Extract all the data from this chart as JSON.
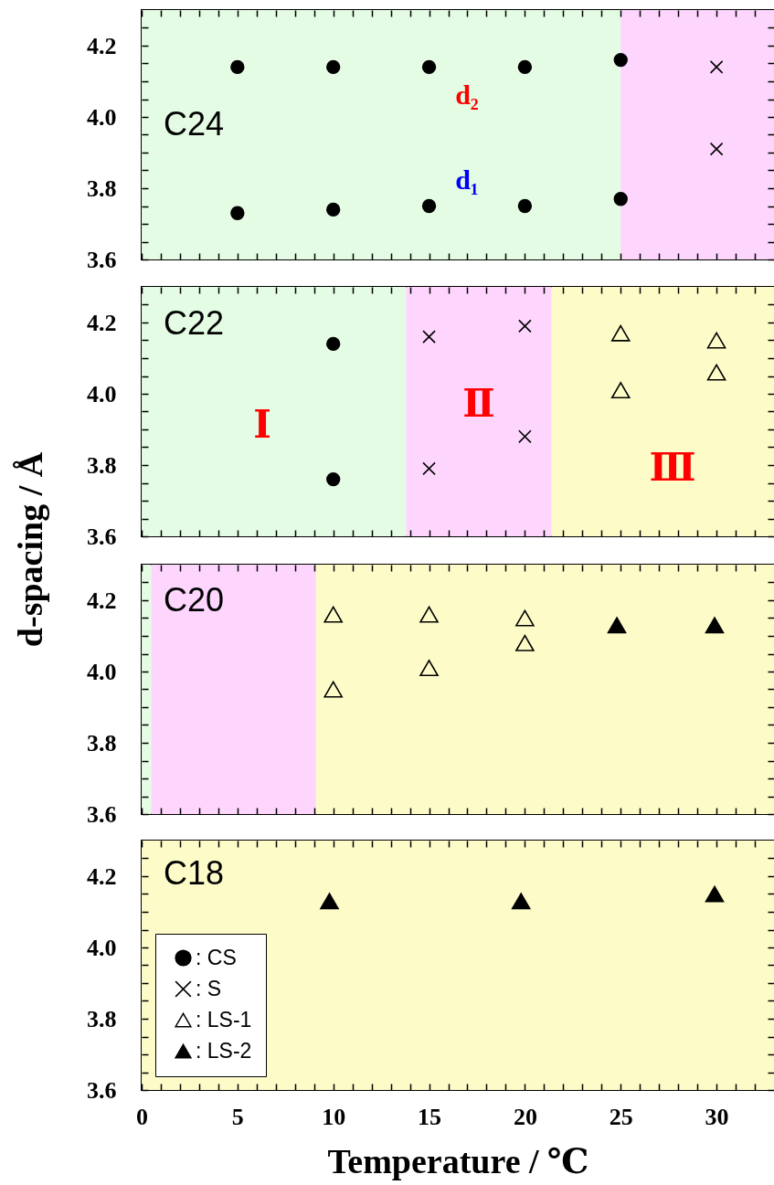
{
  "chart_data": [
    {
      "type": "scatter",
      "title": "C24",
      "tick_labels": "y",
      "series": [
        {
          "color": "#000000",
          "marker": "circle",
          "x": [
            5,
            5,
            10,
            10,
            15,
            15,
            20,
            20,
            25,
            25
          ],
          "values": [
            4.14,
            3.73,
            4.14,
            3.74,
            4.14,
            3.75,
            4.14,
            3.75,
            4.16,
            3.77
          ]
        },
        {
          "color": "#000000",
          "marker": "cross",
          "x": [
            30,
            30
          ],
          "values": [
            4.14,
            3.91
          ]
        }
      ],
      "xlim": [
        0,
        33
      ],
      "ylim": [
        3.6,
        4.3
      ],
      "xticks": [
        0,
        {
          "value": 1,
          "label": null
        },
        {
          "value": 2,
          "label": null
        },
        {
          "value": 3,
          "label": null
        },
        {
          "value": 4,
          "label": null
        },
        5,
        {
          "value": 6,
          "label": null
        },
        {
          "value": 7,
          "label": null
        },
        {
          "value": 8,
          "label": null
        },
        {
          "value": 9,
          "label": null
        },
        10,
        {
          "value": 11,
          "label": null
        },
        {
          "value": 12,
          "label": null
        },
        {
          "value": 13,
          "label": null
        },
        {
          "value": 14,
          "label": null
        },
        15,
        {
          "value": 16,
          "label": null
        },
        {
          "value": 17,
          "label": null
        },
        {
          "value": 18,
          "label": null
        },
        {
          "value": 19,
          "label": null
        },
        20,
        {
          "value": 21,
          "label": null
        },
        {
          "value": 22,
          "label": null
        },
        {
          "value": 23,
          "label": null
        },
        {
          "value": 24,
          "label": null
        },
        25,
        {
          "value": 26,
          "label": null
        },
        {
          "value": 27,
          "label": null
        },
        {
          "value": 28,
          "label": null
        },
        {
          "value": 29,
          "label": null
        },
        30,
        {
          "value": 31,
          "label": null
        },
        {
          "value": 32,
          "label": null
        }
      ],
      "yticks": [
        3.6,
        {
          "value": 3.65,
          "label": null
        },
        {
          "value": 3.7,
          "label": null
        },
        {
          "value": 3.75,
          "label": null
        },
        3.8,
        {
          "value": 3.85,
          "label": null
        },
        {
          "value": 3.9,
          "label": null
        },
        {
          "value": 3.95,
          "label": null
        },
        {
          "value": 4,
          "label": "4.0"
        },
        {
          "value": 4.05,
          "label": null
        },
        {
          "value": 4.1,
          "label": null
        },
        {
          "value": 4.15,
          "label": null
        },
        4.2,
        {
          "value": 4.25,
          "label": null
        }
      ],
      "bands": [
        {
          "axis": "x",
          "from": 0,
          "to": 25,
          "color": "#e3fce3"
        },
        {
          "axis": "x",
          "from": 25,
          "to": 33,
          "color": "#fdd5fd"
        }
      ],
      "annotations": [
        "d₂",
        "d₁"
      ]
    },
    {
      "type": "scatter",
      "title": "C22",
      "tick_labels": "y",
      "ylabel": "d-spacing / Å",
      "series": [
        {
          "color": "#000000",
          "marker": "circle",
          "x": [
            10,
            10
          ],
          "values": [
            4.14,
            3.76
          ]
        },
        {
          "color": "#000000",
          "marker": "cross",
          "x": [
            15,
            15,
            20,
            20
          ],
          "values": [
            4.16,
            3.79,
            4.19,
            3.88
          ]
        },
        {
          "color": "#000000",
          "marker": "triangle",
          "x": [
            25,
            25,
            30,
            30
          ],
          "values": [
            4.17,
            4.01,
            4.15,
            4.06
          ]
        }
      ],
      "xlim": [
        0,
        33
      ],
      "ylim": [
        3.6,
        4.3
      ],
      "xticks": [
        0,
        {
          "value": 1,
          "label": null
        },
        {
          "value": 2,
          "label": null
        },
        {
          "value": 3,
          "label": null
        },
        {
          "value": 4,
          "label": null
        },
        5,
        {
          "value": 6,
          "label": null
        },
        {
          "value": 7,
          "label": null
        },
        {
          "value": 8,
          "label": null
        },
        {
          "value": 9,
          "label": null
        },
        10,
        {
          "value": 11,
          "label": null
        },
        {
          "value": 12,
          "label": null
        },
        {
          "value": 13,
          "label": null
        },
        {
          "value": 14,
          "label": null
        },
        15,
        {
          "value": 16,
          "label": null
        },
        {
          "value": 17,
          "label": null
        },
        {
          "value": 18,
          "label": null
        },
        {
          "value": 19,
          "label": null
        },
        20,
        {
          "value": 21,
          "label": null
        },
        {
          "value": 22,
          "label": null
        },
        {
          "value": 23,
          "label": null
        },
        {
          "value": 24,
          "label": null
        },
        25,
        {
          "value": 26,
          "label": null
        },
        {
          "value": 27,
          "label": null
        },
        {
          "value": 28,
          "label": null
        },
        {
          "value": 29,
          "label": null
        },
        30,
        {
          "value": 31,
          "label": null
        },
        {
          "value": 32,
          "label": null
        }
      ],
      "yticks": [
        3.6,
        {
          "value": 3.65,
          "label": null
        },
        {
          "value": 3.7,
          "label": null
        },
        {
          "value": 3.75,
          "label": null
        },
        3.8,
        {
          "value": 3.85,
          "label": null
        },
        {
          "value": 3.9,
          "label": null
        },
        {
          "value": 3.95,
          "label": null
        },
        {
          "value": 4,
          "label": "4.0"
        },
        {
          "value": 4.05,
          "label": null
        },
        {
          "value": 4.1,
          "label": null
        },
        {
          "value": 4.15,
          "label": null
        },
        4.2,
        {
          "value": 4.25,
          "label": null
        }
      ],
      "bands": [
        {
          "axis": "x",
          "from": 0,
          "to": 13.8,
          "color": "#e3fce3"
        },
        {
          "axis": "x",
          "from": 13.8,
          "to": 21.4,
          "color": "#fdd5fd"
        },
        {
          "axis": "x",
          "from": 21.4,
          "to": 33,
          "color": "#fdfcc8"
        }
      ],
      "annotations": [
        "Ⅰ",
        "Ⅱ",
        "Ⅲ"
      ]
    },
    {
      "type": "scatter",
      "title": "C20",
      "tick_labels": "y",
      "series": [
        {
          "color": "#000000",
          "marker": "triangle",
          "x": [
            10,
            10,
            15,
            15,
            20,
            20
          ],
          "values": [
            4.16,
            3.95,
            4.16,
            4.01,
            4.15,
            4.08
          ]
        },
        {
          "color": "#000000",
          "marker": "triangle",
          "x": [
            24.8,
            29.9
          ],
          "values": [
            4.13,
            4.13
          ]
        }
      ],
      "xlim": [
        0,
        33
      ],
      "ylim": [
        3.6,
        4.3
      ],
      "xticks": [
        0,
        {
          "value": 1,
          "label": null
        },
        {
          "value": 2,
          "label": null
        },
        {
          "value": 3,
          "label": null
        },
        {
          "value": 4,
          "label": null
        },
        5,
        {
          "value": 6,
          "label": null
        },
        {
          "value": 7,
          "label": null
        },
        {
          "value": 8,
          "label": null
        },
        {
          "value": 9,
          "label": null
        },
        10,
        {
          "value": 11,
          "label": null
        },
        {
          "value": 12,
          "label": null
        },
        {
          "value": 13,
          "label": null
        },
        {
          "value": 14,
          "label": null
        },
        15,
        {
          "value": 16,
          "label": null
        },
        {
          "value": 17,
          "label": null
        },
        {
          "value": 18,
          "label": null
        },
        {
          "value": 19,
          "label": null
        },
        20,
        {
          "value": 21,
          "label": null
        },
        {
          "value": 22,
          "label": null
        },
        {
          "value": 23,
          "label": null
        },
        {
          "value": 24,
          "label": null
        },
        25,
        {
          "value": 26,
          "label": null
        },
        {
          "value": 27,
          "label": null
        },
        {
          "value": 28,
          "label": null
        },
        {
          "value": 29,
          "label": null
        },
        30,
        {
          "value": 31,
          "label": null
        },
        {
          "value": 32,
          "label": null
        }
      ],
      "yticks": [
        3.6,
        {
          "value": 3.65,
          "label": null
        },
        {
          "value": 3.7,
          "label": null
        },
        {
          "value": 3.75,
          "label": null
        },
        3.8,
        {
          "value": 3.85,
          "label": null
        },
        {
          "value": 3.9,
          "label": null
        },
        {
          "value": 3.95,
          "label": null
        },
        {
          "value": 4,
          "label": "4.0"
        },
        {
          "value": 4.05,
          "label": null
        },
        {
          "value": 4.1,
          "label": null
        },
        {
          "value": 4.15,
          "label": null
        },
        4.2,
        {
          "value": 4.25,
          "label": null
        }
      ],
      "bands": [
        {
          "axis": "x",
          "from": 0,
          "to": 0.5,
          "color": "#e3fce3"
        },
        {
          "axis": "x",
          "from": 0.5,
          "to": 9.1,
          "color": "#fdd5fd"
        },
        {
          "axis": "x",
          "from": 9.1,
          "to": 33,
          "color": "#fdfcc8"
        }
      ]
    },
    {
      "type": "scatter",
      "title": "C18",
      "xlabel": "Temperature / ℃",
      "legend": "bottom left",
      "series": [
        {
          "name": ": CS",
          "color": "#000000",
          "marker": "circle"
        },
        {
          "name": ": S",
          "color": "#000000",
          "marker": "cross"
        },
        {
          "name": ": LS-1",
          "color": "#000000",
          "marker": "triangle"
        },
        {
          "name": ": LS-2",
          "color": "#000000",
          "marker": "triangle",
          "x": [
            9.8,
            19.8,
            29.9
          ],
          "values": [
            4.13,
            4.13,
            4.15
          ]
        }
      ],
      "xlim": [
        0,
        33
      ],
      "ylim": [
        3.6,
        4.3
      ],
      "xticks": [
        0,
        {
          "value": 1,
          "label": null
        },
        {
          "value": 2,
          "label": null
        },
        {
          "value": 3,
          "label": null
        },
        {
          "value": 4,
          "label": null
        },
        5,
        {
          "value": 6,
          "label": null
        },
        {
          "value": 7,
          "label": null
        },
        {
          "value": 8,
          "label": null
        },
        {
          "value": 9,
          "label": null
        },
        10,
        {
          "value": 11,
          "label": null
        },
        {
          "value": 12,
          "label": null
        },
        {
          "value": 13,
          "label": null
        },
        {
          "value": 14,
          "label": null
        },
        15,
        {
          "value": 16,
          "label": null
        },
        {
          "value": 17,
          "label": null
        },
        {
          "value": 18,
          "label": null
        },
        {
          "value": 19,
          "label": null
        },
        20,
        {
          "value": 21,
          "label": null
        },
        {
          "value": 22,
          "label": null
        },
        {
          "value": 23,
          "label": null
        },
        {
          "value": 24,
          "label": null
        },
        25,
        {
          "value": 26,
          "label": null
        },
        {
          "value": 27,
          "label": null
        },
        {
          "value": 28,
          "label": null
        },
        {
          "value": 29,
          "label": null
        },
        30,
        {
          "value": 31,
          "label": null
        },
        {
          "value": 32,
          "label": null
        }
      ],
      "yticks": [
        3.6,
        {
          "value": 3.65,
          "label": null
        },
        {
          "value": 3.7,
          "label": null
        },
        {
          "value": 3.75,
          "label": null
        },
        3.8,
        {
          "value": 3.85,
          "label": null
        },
        {
          "value": 3.9,
          "label": null
        },
        {
          "value": 3.95,
          "label": null
        },
        {
          "value": 4,
          "label": "4.0"
        },
        {
          "value": 4.05,
          "label": null
        },
        {
          "value": 4.1,
          "label": null
        },
        {
          "value": 4.15,
          "label": null
        },
        4.2,
        {
          "value": 4.25,
          "label": null
        }
      ],
      "bands": [
        {
          "axis": "x",
          "from": 0,
          "to": 33,
          "color": "#fdfcc8"
        }
      ]
    }
  ]
}
